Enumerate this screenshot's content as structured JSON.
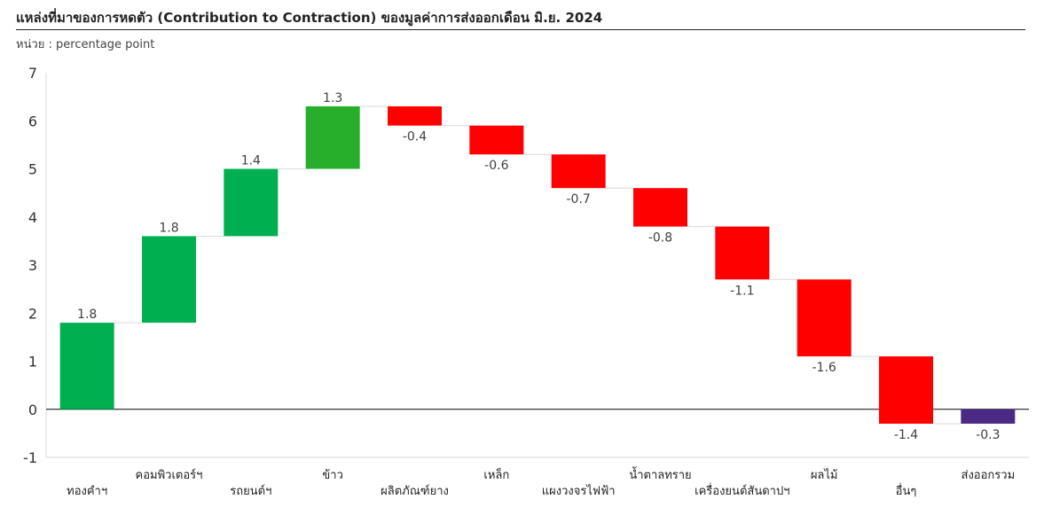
{
  "header": {
    "title": "แหล่งที่มาของการหดตัว (Contribution to Contraction) ของมูลค่าการส่งออกเดือน มิ.ย. 2024",
    "unit": "หน่วย : percentage point"
  },
  "colors": {
    "positive_first": "#00b050",
    "positive": "#27ae2b",
    "negative": "#ff0000",
    "total": "#4b2a86",
    "connector": "#d9d9d9",
    "zero_line": "#000000"
  },
  "chart_data": {
    "type": "bar",
    "subtype": "waterfall",
    "title": "",
    "xlabel": "",
    "ylabel": "",
    "ylim": [
      -1,
      7
    ],
    "yticks": [
      -1,
      0,
      1,
      2,
      3,
      4,
      5,
      6,
      7
    ],
    "grid": false,
    "categories": [
      "ทองคำฯ",
      "คอมพิวเตอร์ฯ",
      "รถยนต์ฯ",
      "ข้าว",
      "ผลิตภัณฑ์ยาง",
      "เหล็ก",
      "แผงวงจรไฟฟ้า",
      "น้ำตาลทราย",
      "เครื่องยนต์สันดาปฯ",
      "ผลไม้",
      "อื่นๆ",
      "ส่งออกรวม"
    ],
    "values": [
      1.8,
      1.8,
      1.4,
      1.3,
      -0.4,
      -0.6,
      -0.7,
      -0.8,
      -1.1,
      -1.6,
      -1.4,
      -0.3
    ],
    "value_labels": [
      "1.8",
      "1.8",
      "1.4",
      "1.3",
      "-0.4",
      "-0.6",
      "-0.7",
      "-0.8",
      "-1.1",
      "-1.6",
      "-1.4",
      "-0.3"
    ],
    "total_index": 11
  }
}
